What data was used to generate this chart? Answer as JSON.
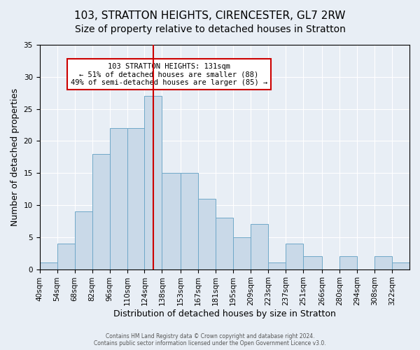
{
  "title1": "103, STRATTON HEIGHTS, CIRENCESTER, GL7 2RW",
  "title2": "Size of property relative to detached houses in Stratton",
  "xlabel": "Distribution of detached houses by size in Stratton",
  "ylabel": "Number of detached properties",
  "bar_values": [
    1,
    4,
    9,
    18,
    22,
    22,
    27,
    15,
    15,
    11,
    8,
    5,
    7,
    1,
    4,
    2,
    0,
    2,
    0,
    2,
    1
  ],
  "bin_labels": [
    "40sqm",
    "54sqm",
    "68sqm",
    "82sqm",
    "96sqm",
    "110sqm",
    "124sqm",
    "138sqm",
    "153sqm",
    "167sqm",
    "181sqm",
    "195sqm",
    "209sqm",
    "223sqm",
    "237sqm",
    "251sqm",
    "266sqm",
    "280sqm",
    "294sqm",
    "308sqm",
    "322sqm"
  ],
  "bin_edges": [
    40,
    54,
    68,
    82,
    96,
    110,
    124,
    138,
    153,
    167,
    181,
    195,
    209,
    223,
    237,
    251,
    266,
    280,
    294,
    308,
    322,
    336
  ],
  "bar_color": "#c9d9e8",
  "bar_edge_color": "#6fa8c8",
  "vline_x": 131,
  "vline_color": "#cc0000",
  "annotation_text": "103 STRATTON HEIGHTS: 131sqm\n← 51% of detached houses are smaller (88)\n49% of semi-detached houses are larger (85) →",
  "annotation_box_color": "#ffffff",
  "annotation_box_edge": "#cc0000",
  "ylim": [
    0,
    35
  ],
  "yticks": [
    0,
    5,
    10,
    15,
    20,
    25,
    30,
    35
  ],
  "background_color": "#e8eef5",
  "footer_text": "Contains HM Land Registry data © Crown copyright and database right 2024.\nContains public sector information licensed under the Open Government Licence v3.0.",
  "title1_fontsize": 11,
  "title2_fontsize": 10,
  "xlabel_fontsize": 9,
  "ylabel_fontsize": 9,
  "tick_fontsize": 7.5
}
